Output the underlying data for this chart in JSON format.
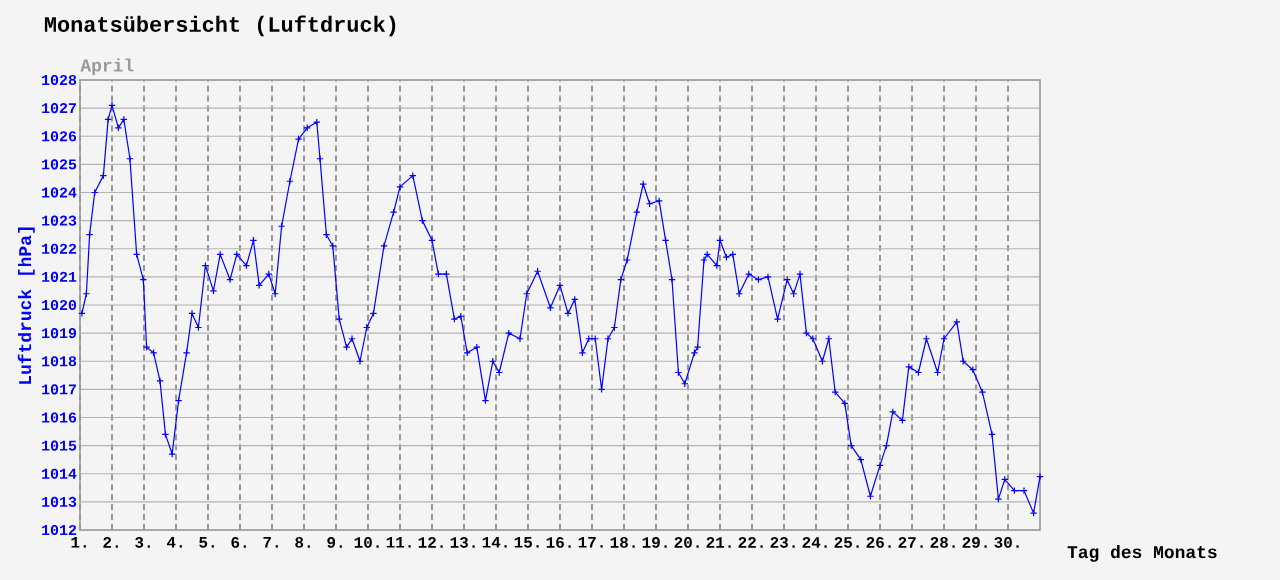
{
  "chart_data": {
    "type": "line",
    "title": "Monatsübersicht (Luftdruck)",
    "subtitle": "April",
    "xlabel": "Tag des Monats",
    "ylabel": "Luftdruck [hPa]",
    "xlim": [
      1,
      31
    ],
    "ylim": [
      1012,
      1028
    ],
    "xticks": [
      {
        "value": 1,
        "label": "1."
      },
      {
        "value": 2,
        "label": "2."
      },
      {
        "value": 3,
        "label": "3."
      },
      {
        "value": 4,
        "label": "4."
      },
      {
        "value": 5,
        "label": "5."
      },
      {
        "value": 6,
        "label": "6."
      },
      {
        "value": 7,
        "label": "7."
      },
      {
        "value": 8,
        "label": "8."
      },
      {
        "value": 9,
        "label": "9."
      },
      {
        "value": 10,
        "label": "10."
      },
      {
        "value": 11,
        "label": "11."
      },
      {
        "value": 12,
        "label": "12."
      },
      {
        "value": 13,
        "label": "13."
      },
      {
        "value": 14,
        "label": "14."
      },
      {
        "value": 15,
        "label": "15."
      },
      {
        "value": 16,
        "label": "16."
      },
      {
        "value": 17,
        "label": "17."
      },
      {
        "value": 18,
        "label": "18."
      },
      {
        "value": 19,
        "label": "19."
      },
      {
        "value": 20,
        "label": "20."
      },
      {
        "value": 21,
        "label": "21."
      },
      {
        "value": 22,
        "label": "22."
      },
      {
        "value": 23,
        "label": "23."
      },
      {
        "value": 24,
        "label": "24."
      },
      {
        "value": 25,
        "label": "25."
      },
      {
        "value": 26,
        "label": "26."
      },
      {
        "value": 27,
        "label": "27."
      },
      {
        "value": 28,
        "label": "28."
      },
      {
        "value": 29,
        "label": "29."
      },
      {
        "value": 30,
        "label": "30."
      }
    ],
    "yticks": [
      1012,
      1013,
      1014,
      1015,
      1016,
      1017,
      1018,
      1019,
      1020,
      1021,
      1022,
      1023,
      1024,
      1025,
      1026,
      1027,
      1028
    ],
    "grid": true,
    "marker": "cross",
    "line_style": "solid",
    "series": [
      {
        "color": "#0000ff",
        "x": [
          1.06,
          1.2,
          1.3,
          1.46,
          1.73,
          1.88,
          2.0,
          2.2,
          2.37,
          2.56,
          2.77,
          2.98,
          3.08,
          3.3,
          3.5,
          3.67,
          3.88,
          4.08,
          4.33,
          4.5,
          4.7,
          4.92,
          5.17,
          5.38,
          5.69,
          5.9,
          6.2,
          6.42,
          6.6,
          6.9,
          7.1,
          7.3,
          7.56,
          7.83,
          8.1,
          8.4,
          8.5,
          8.7,
          8.9,
          9.1,
          9.33,
          9.5,
          9.75,
          9.96,
          10.17,
          10.5,
          10.8,
          11.0,
          11.4,
          11.7,
          12.0,
          12.2,
          12.45,
          12.7,
          12.9,
          13.1,
          13.4,
          13.67,
          13.9,
          14.1,
          14.4,
          14.75,
          14.96,
          15.3,
          15.7,
          16.0,
          16.25,
          16.46,
          16.7,
          16.9,
          17.1,
          17.3,
          17.5,
          17.7,
          17.9,
          18.1,
          18.4,
          18.6,
          18.8,
          19.1,
          19.3,
          19.5,
          19.7,
          19.9,
          20.2,
          20.3,
          20.5,
          20.6,
          20.9,
          21.0,
          21.2,
          21.4,
          21.6,
          21.9,
          22.2,
          22.5,
          22.8,
          23.1,
          23.3,
          23.5,
          23.7,
          23.9,
          24.2,
          24.4,
          24.6,
          24.9,
          25.1,
          25.4,
          25.7,
          26.0,
          26.2,
          26.4,
          26.7,
          26.9,
          27.2,
          27.45,
          27.8,
          28.0,
          28.4,
          28.6,
          28.9,
          29.2,
          29.5,
          29.7,
          29.9,
          30.2,
          30.5,
          30.8,
          31.0
        ],
        "values": [
          1019.7,
          1020.4,
          1022.5,
          1024.0,
          1024.6,
          1026.6,
          1027.1,
          1026.3,
          1026.6,
          1025.2,
          1021.8,
          1020.9,
          1018.5,
          1018.3,
          1017.3,
          1015.4,
          1014.7,
          1016.6,
          1018.3,
          1019.7,
          1019.2,
          1021.4,
          1020.5,
          1021.8,
          1020.9,
          1021.8,
          1021.4,
          1022.3,
          1020.7,
          1021.1,
          1020.4,
          1022.8,
          1024.4,
          1025.9,
          1026.3,
          1026.5,
          1025.2,
          1022.5,
          1022.1,
          1019.5,
          1018.5,
          1018.8,
          1018.0,
          1019.2,
          1019.7,
          1022.1,
          1023.3,
          1024.2,
          1024.6,
          1023.0,
          1022.3,
          1021.1,
          1021.1,
          1019.5,
          1019.6,
          1018.3,
          1018.5,
          1016.6,
          1018.0,
          1017.6,
          1019.0,
          1018.8,
          1020.4,
          1021.2,
          1019.9,
          1020.7,
          1019.7,
          1020.2,
          1018.3,
          1018.8,
          1018.8,
          1017.0,
          1018.8,
          1019.2,
          1020.9,
          1021.6,
          1023.3,
          1024.3,
          1023.6,
          1023.7,
          1022.3,
          1020.9,
          1017.6,
          1017.2,
          1018.3,
          1018.5,
          1021.6,
          1021.8,
          1021.4,
          1022.3,
          1021.7,
          1021.8,
          1020.4,
          1021.1,
          1020.9,
          1021.0,
          1019.5,
          1020.9,
          1020.4,
          1021.1,
          1019.0,
          1018.8,
          1018.0,
          1018.8,
          1016.9,
          1016.5,
          1015.0,
          1014.5,
          1013.2,
          1014.3,
          1015.0,
          1016.2,
          1015.9,
          1017.8,
          1017.6,
          1018.8,
          1017.6,
          1018.8,
          1019.4,
          1018.0,
          1017.7,
          1016.9,
          1015.4,
          1013.1,
          1013.8,
          1013.4,
          1013.4,
          1012.6,
          1013.9
        ]
      }
    ]
  }
}
